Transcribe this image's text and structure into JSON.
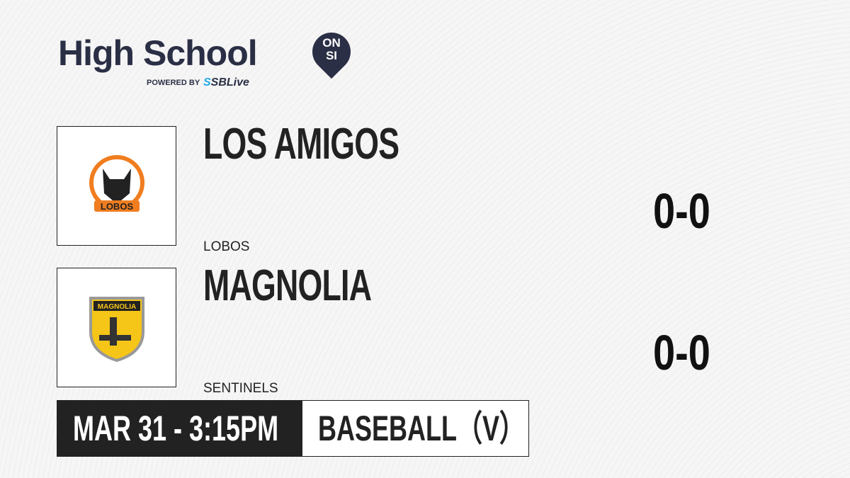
{
  "brand": {
    "title": "High School",
    "badge_top": "ON",
    "badge_bottom": "SI",
    "powered_by": "POWERED BY",
    "partner_prefix": "S",
    "partner": "SBLive"
  },
  "teams": [
    {
      "name": "LOS AMIGOS",
      "mascot": "LOBOS",
      "logo_text": "LOBOS",
      "score": "0-0",
      "logo_color": "#f07d1f"
    },
    {
      "name": "MAGNOLIA",
      "mascot": "SENTINELS",
      "logo_text": "MAGNOLIA",
      "score": "0-0",
      "logo_color": "#f5c518"
    }
  ],
  "game": {
    "datetime": "MAR 31 - 3:15PM",
    "sport": "BASEBALL（V）"
  }
}
